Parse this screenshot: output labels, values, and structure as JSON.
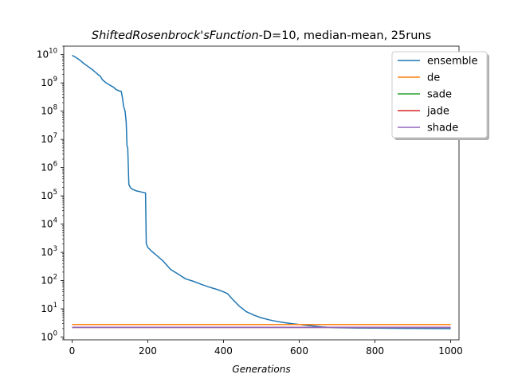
{
  "chart_data": {
    "type": "line",
    "title_italic": "ShiftedRosenbrock'sFunction",
    "title_rest": "-D=10, median-mean, 25runs",
    "xlabel": "Generations",
    "ylabel": "",
    "xlim": [
      -22,
      1022
    ],
    "ylim": [
      0.8,
      20000000000
    ],
    "yscale": "log",
    "x_ticks": [
      0,
      200,
      400,
      600,
      800,
      1000
    ],
    "x_tick_labels": [
      "0",
      "200",
      "400",
      "600",
      "800",
      "1000"
    ],
    "y_ticks": [
      1,
      10,
      100,
      1000,
      10000,
      100000,
      1000000,
      10000000,
      100000000,
      1000000000,
      10000000000
    ],
    "y_tick_exponents": [
      "0",
      "1",
      "2",
      "3",
      "4",
      "5",
      "6",
      "7",
      "8",
      "9",
      "10"
    ],
    "y_tick_base": "10",
    "grid": false,
    "legend_position": "top-right",
    "series": [
      {
        "name": "ensemble",
        "color": "#1f77b4",
        "x": [
          0,
          10,
          20,
          30,
          40,
          50,
          60,
          70,
          75,
          80,
          90,
          100,
          110,
          115,
          120,
          125,
          130,
          133,
          136,
          140,
          143,
          145,
          147,
          150,
          155,
          160,
          170,
          180,
          190,
          194,
          196,
          200,
          210,
          220,
          240,
          260,
          280,
          300,
          320,
          340,
          360,
          380,
          390,
          400,
          410,
          420,
          440,
          460,
          480,
          500,
          520,
          540,
          560,
          580,
          600,
          620,
          640,
          660,
          680,
          700,
          750,
          800,
          850,
          900,
          950,
          1000
        ],
        "y": [
          9500000000,
          8000000000,
          6500000000,
          5000000000,
          4000000000,
          3200000000,
          2500000000,
          1900000000,
          1700000000,
          1300000000,
          1000000000,
          830000000,
          700000000,
          600000000,
          550000000,
          520000000,
          500000000,
          300000000,
          150000000,
          100000000,
          40000000,
          6000000,
          5000000,
          250000,
          190000,
          170000,
          150000,
          140000,
          130000,
          128000,
          2000,
          1500,
          1100,
          850,
          500,
          250,
          170,
          115,
          95,
          75,
          60,
          50,
          45,
          40,
          35,
          25,
          13,
          8,
          6,
          4.8,
          4.1,
          3.6,
          3.25,
          3.0,
          2.8,
          2.6,
          2.45,
          2.3,
          2.2,
          2.15,
          2.1,
          2.08,
          2.05,
          2.03,
          2.02,
          2.0
        ]
      },
      {
        "name": "de",
        "color": "#ff7f0e",
        "x": [
          0,
          1000
        ],
        "y": [
          2.8,
          2.8
        ]
      },
      {
        "name": "sade",
        "color": "#2ca02c",
        "x": [
          0,
          1000
        ],
        "y": [
          2.2,
          2.2
        ]
      },
      {
        "name": "jade",
        "color": "#d62728",
        "x": [
          0,
          1000
        ],
        "y": [
          2.2,
          2.2
        ]
      },
      {
        "name": "shade",
        "color": "#9467bd",
        "x": [
          0,
          1000
        ],
        "y": [
          2.2,
          2.2
        ]
      }
    ]
  }
}
